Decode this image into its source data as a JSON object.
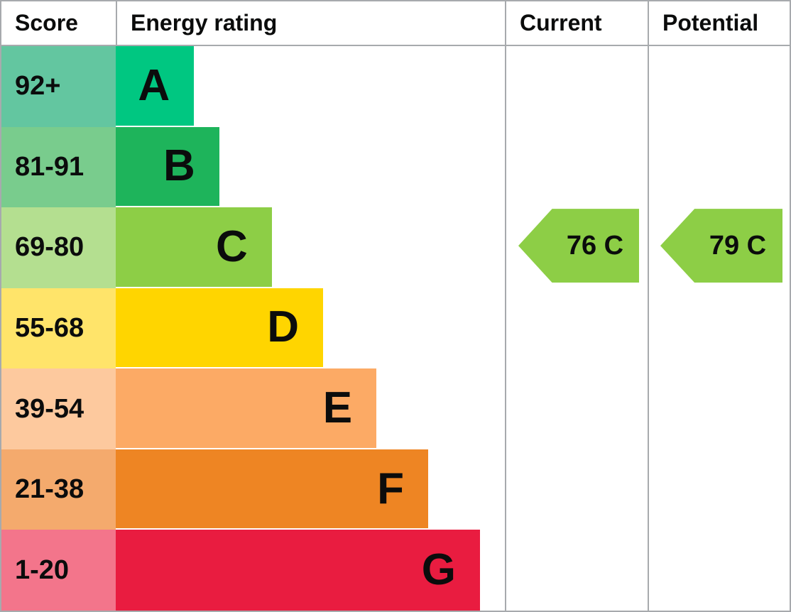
{
  "header": {
    "score": "Score",
    "energy_rating": "Energy rating",
    "current": "Current",
    "potential": "Potential"
  },
  "colors": {
    "border": "#a7aaad",
    "text": "#0b0c0c",
    "arrow_green": "#8dce46"
  },
  "bands": [
    {
      "score": "92+",
      "letter": "A",
      "bar_color": "#00c781",
      "score_color": "#63c6a0",
      "bar_width": "20.1%"
    },
    {
      "score": "81-91",
      "letter": "B",
      "bar_color": "#1eb45b",
      "score_color": "#79cc8d",
      "bar_width": "26.6%"
    },
    {
      "score": "69-80",
      "letter": "C",
      "bar_color": "#8dce46",
      "score_color": "#b4df90",
      "bar_width": "40.1%"
    },
    {
      "score": "55-68",
      "letter": "D",
      "bar_color": "#ffd500",
      "score_color": "#ffe46a",
      "bar_width": "53.3%"
    },
    {
      "score": "39-54",
      "letter": "E",
      "bar_color": "#fcaa65",
      "score_color": "#fdc99e",
      "bar_width": "67.0%"
    },
    {
      "score": "21-38",
      "letter": "F",
      "bar_color": "#ee8523",
      "score_color": "#f4aa6d",
      "bar_width": "80.3%"
    },
    {
      "score": "1-20",
      "letter": "G",
      "bar_color": "#e91c40",
      "score_color": "#f3758b",
      "bar_width": "93.6%"
    }
  ],
  "current": {
    "label": "76 C",
    "value": 76,
    "band": "C",
    "color": "#8dce46"
  },
  "potential": {
    "label": "79 C",
    "value": 79,
    "band": "C",
    "color": "#8dce46"
  },
  "chart_data": {
    "type": "bar",
    "subtype": "epc-energy-rating-graph",
    "title": "Energy rating",
    "categories": [
      "A (92+)",
      "B (81-91)",
      "C (69-80)",
      "D (55-68)",
      "E (39-54)",
      "F (21-38)",
      "G (1-20)"
    ],
    "values": [
      20.1,
      26.6,
      40.1,
      53.3,
      67.0,
      80.3,
      93.6
    ],
    "value_note": "decorative band lengths as percent of rating column width",
    "band_colors": [
      "#00c781",
      "#1eb45b",
      "#8dce46",
      "#ffd500",
      "#fcaa65",
      "#ee8523",
      "#e91c40"
    ],
    "markers": [
      {
        "name": "Current",
        "value": 76,
        "band": "C"
      },
      {
        "name": "Potential",
        "value": 79,
        "band": "C"
      }
    ],
    "legend": false,
    "grid": false
  }
}
